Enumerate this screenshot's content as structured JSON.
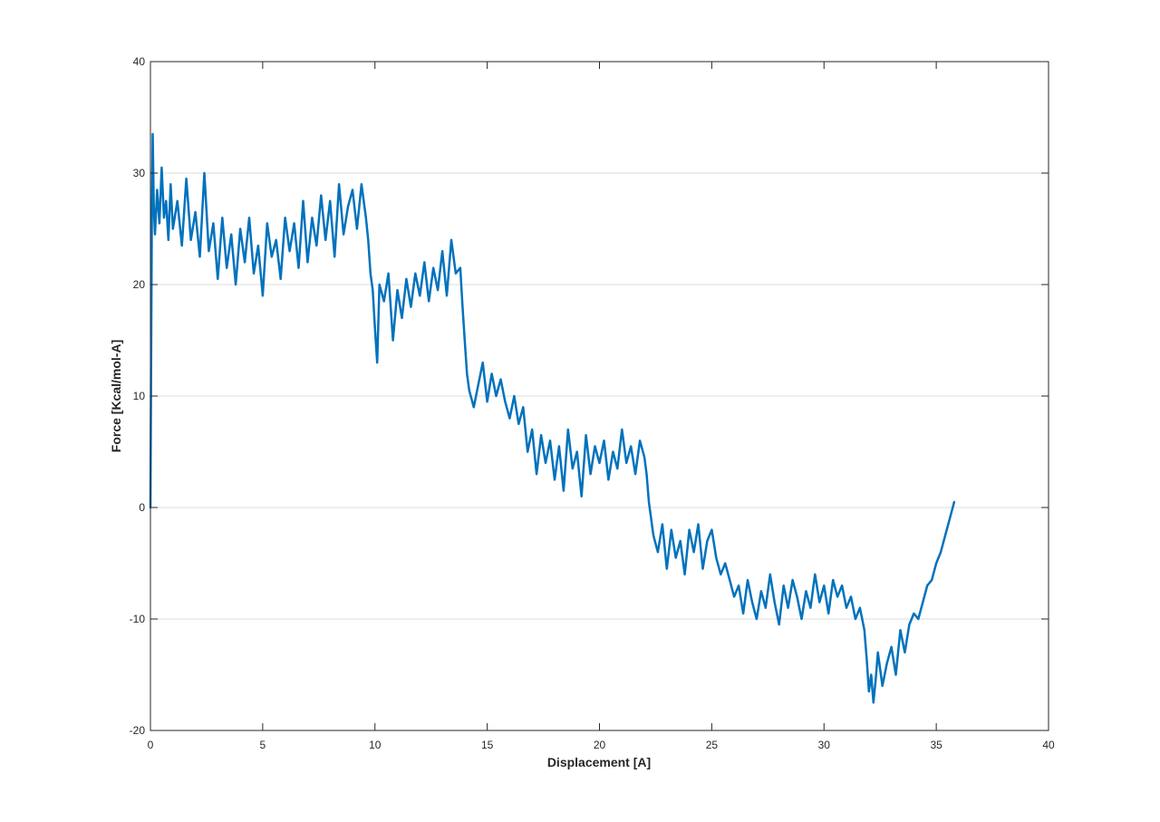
{
  "chart_data": {
    "type": "line",
    "title": "",
    "xlabel": "Displacement [A]",
    "ylabel": "Force [Kcal/mol-A]",
    "xlim": [
      0,
      40
    ],
    "ylim": [
      -20,
      40
    ],
    "xticks": [
      0,
      5,
      10,
      15,
      20,
      25,
      30,
      35,
      40
    ],
    "yticks": [
      -20,
      -10,
      0,
      10,
      20,
      30,
      40
    ],
    "grid": "horizontal",
    "legend": "none",
    "series": [
      {
        "color": "#0072BD",
        "x": [
          0.0,
          0.03,
          0.06,
          0.1,
          0.15,
          0.2,
          0.3,
          0.4,
          0.5,
          0.6,
          0.7,
          0.8,
          0.9,
          1.0,
          1.2,
          1.4,
          1.6,
          1.8,
          2.0,
          2.2,
          2.4,
          2.6,
          2.8,
          3.0,
          3.2,
          3.4,
          3.6,
          3.8,
          4.0,
          4.2,
          4.4,
          4.6,
          4.8,
          5.0,
          5.2,
          5.4,
          5.6,
          5.8,
          6.0,
          6.2,
          6.4,
          6.6,
          6.8,
          7.0,
          7.2,
          7.4,
          7.6,
          7.8,
          8.0,
          8.2,
          8.4,
          8.6,
          8.8,
          9.0,
          9.2,
          9.4,
          9.6,
          9.7,
          9.8,
          9.9,
          10.0,
          10.1,
          10.2,
          10.4,
          10.6,
          10.8,
          11.0,
          11.2,
          11.4,
          11.6,
          11.8,
          12.0,
          12.2,
          12.4,
          12.6,
          12.8,
          13.0,
          13.2,
          13.4,
          13.6,
          13.8,
          13.9,
          14.0,
          14.1,
          14.2,
          14.4,
          14.6,
          14.8,
          15.0,
          15.2,
          15.4,
          15.6,
          15.8,
          16.0,
          16.2,
          16.4,
          16.6,
          16.8,
          17.0,
          17.2,
          17.4,
          17.6,
          17.8,
          18.0,
          18.2,
          18.4,
          18.6,
          18.8,
          19.0,
          19.2,
          19.4,
          19.6,
          19.8,
          20.0,
          20.2,
          20.4,
          20.6,
          20.8,
          21.0,
          21.2,
          21.4,
          21.6,
          21.8,
          22.0,
          22.1,
          22.2,
          22.3,
          22.4,
          22.6,
          22.8,
          23.0,
          23.2,
          23.4,
          23.6,
          23.8,
          24.0,
          24.2,
          24.4,
          24.6,
          24.8,
          25.0,
          25.2,
          25.4,
          25.6,
          25.8,
          26.0,
          26.2,
          26.4,
          26.6,
          26.8,
          27.0,
          27.2,
          27.4,
          27.6,
          27.8,
          28.0,
          28.2,
          28.4,
          28.6,
          28.8,
          29.0,
          29.2,
          29.4,
          29.6,
          29.8,
          30.0,
          30.2,
          30.4,
          30.6,
          30.8,
          31.0,
          31.2,
          31.4,
          31.6,
          31.8,
          31.9,
          32.0,
          32.1,
          32.2,
          32.3,
          32.4,
          32.6,
          32.8,
          33.0,
          33.2,
          33.4,
          33.6,
          33.8,
          34.0,
          34.2,
          34.4,
          34.6,
          34.8,
          35.0,
          35.2,
          35.4,
          35.6,
          35.8
        ],
        "y": [
          0.0,
          12.0,
          25.0,
          33.5,
          27.0,
          24.5,
          28.5,
          25.5,
          30.5,
          26.0,
          27.5,
          24.0,
          29.0,
          25.0,
          27.5,
          23.5,
          29.5,
          24.0,
          26.5,
          22.5,
          30.0,
          23.0,
          25.5,
          20.5,
          26.0,
          21.5,
          24.5,
          20.0,
          25.0,
          22.0,
          26.0,
          21.0,
          23.5,
          19.0,
          25.5,
          22.5,
          24.0,
          20.5,
          26.0,
          23.0,
          25.5,
          21.5,
          27.5,
          22.0,
          26.0,
          23.5,
          28.0,
          24.0,
          27.5,
          22.5,
          29.0,
          24.5,
          27.0,
          28.5,
          25.0,
          29.0,
          26.0,
          24.0,
          21.0,
          19.5,
          16.0,
          13.0,
          20.0,
          18.5,
          21.0,
          15.0,
          19.5,
          17.0,
          20.5,
          18.0,
          21.0,
          19.0,
          22.0,
          18.5,
          21.5,
          19.5,
          23.0,
          19.0,
          24.0,
          21.0,
          21.5,
          18.0,
          15.0,
          12.0,
          10.5,
          9.0,
          11.0,
          13.0,
          9.5,
          12.0,
          10.0,
          11.5,
          9.5,
          8.0,
          10.0,
          7.5,
          9.0,
          5.0,
          7.0,
          3.0,
          6.5,
          4.0,
          6.0,
          2.5,
          5.5,
          1.5,
          7.0,
          3.5,
          5.0,
          1.0,
          6.5,
          3.0,
          5.5,
          4.0,
          6.0,
          2.5,
          5.0,
          3.5,
          7.0,
          4.0,
          5.5,
          3.0,
          6.0,
          4.5,
          3.0,
          0.5,
          -1.0,
          -2.5,
          -4.0,
          -1.5,
          -5.5,
          -2.0,
          -4.5,
          -3.0,
          -6.0,
          -2.0,
          -4.0,
          -1.5,
          -5.5,
          -3.0,
          -2.0,
          -4.5,
          -6.0,
          -5.0,
          -6.5,
          -8.0,
          -7.0,
          -9.5,
          -6.5,
          -8.5,
          -10.0,
          -7.5,
          -9.0,
          -6.0,
          -8.5,
          -10.5,
          -7.0,
          -9.0,
          -6.5,
          -8.0,
          -10.0,
          -7.5,
          -9.0,
          -6.0,
          -8.5,
          -7.0,
          -9.5,
          -6.5,
          -8.0,
          -7.0,
          -9.0,
          -8.0,
          -10.0,
          -9.0,
          -11.0,
          -13.5,
          -16.5,
          -15.0,
          -17.5,
          -15.5,
          -13.0,
          -16.0,
          -14.0,
          -12.5,
          -15.0,
          -11.0,
          -13.0,
          -10.5,
          -9.5,
          -10.0,
          -8.5,
          -7.0,
          -6.5,
          -5.0,
          -4.0,
          -2.5,
          -1.0,
          0.5
        ]
      }
    ]
  }
}
